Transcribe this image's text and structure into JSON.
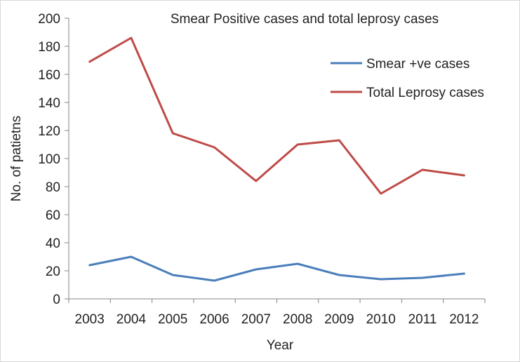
{
  "chart_data": {
    "type": "line",
    "title": "Smear Positive cases and total leprosy cases",
    "xlabel": "Year",
    "ylabel": "No. of patietns",
    "categories": [
      "2003",
      "2004",
      "2005",
      "2006",
      "2007",
      "2008",
      "2009",
      "2010",
      "2011",
      "2012"
    ],
    "ylim": [
      0,
      200
    ],
    "yticks": [
      "0",
      "20",
      "40",
      "60",
      "80",
      "100",
      "120",
      "140",
      "160",
      "180",
      "200"
    ],
    "grid": false,
    "legend_position": "top-right",
    "series": [
      {
        "name": "Smear +ve cases",
        "color": "#4a7ebb",
        "values": [
          24,
          30,
          17,
          13,
          21,
          25,
          17,
          14,
          15,
          18
        ]
      },
      {
        "name": "Total Leprosy cases",
        "color": "#be4b48",
        "values": [
          169,
          186,
          118,
          108,
          84,
          110,
          113,
          75,
          92,
          88
        ]
      }
    ]
  }
}
